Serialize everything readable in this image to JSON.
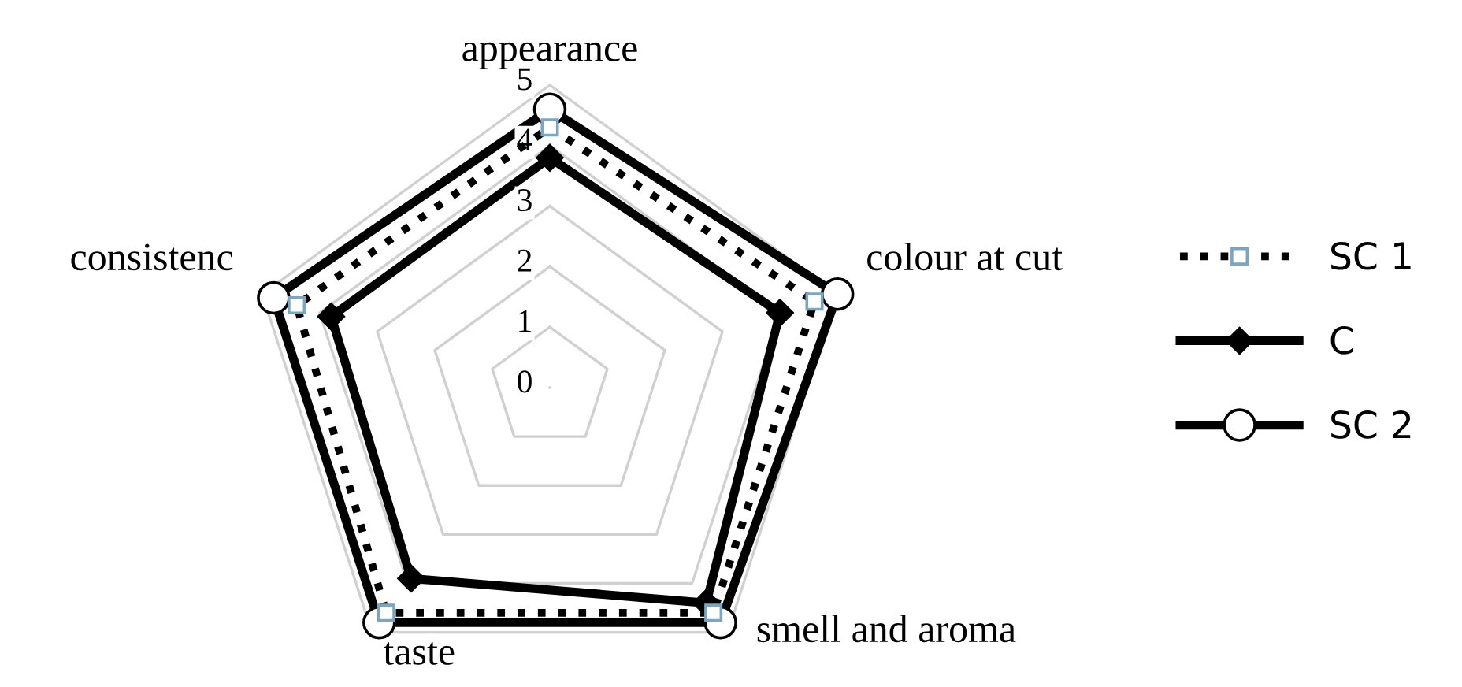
{
  "chart_data": {
    "type": "radar",
    "categories": [
      "appearance",
      "colour at cut",
      "smell and aroma",
      "taste",
      "consistenc"
    ],
    "ylim": [
      0,
      5
    ],
    "yticks": [
      0,
      1,
      2,
      3,
      4,
      5
    ],
    "grid": true,
    "legend": "right",
    "series": [
      {
        "name": "SC 1",
        "color": "#000000",
        "values": [
          4.3,
          4.6,
          4.6,
          4.6,
          4.4
        ],
        "line_style": "dotted",
        "marker": "square"
      },
      {
        "name": "C",
        "color": "#000000",
        "values": [
          3.8,
          4.0,
          4.4,
          3.9,
          3.8
        ],
        "line_style": "solid",
        "marker": "diamond"
      },
      {
        "name": "SC 2",
        "color": "#000000",
        "values": [
          4.6,
          5.0,
          4.8,
          4.8,
          4.8
        ],
        "line_style": "solid",
        "marker": "circle"
      }
    ]
  }
}
